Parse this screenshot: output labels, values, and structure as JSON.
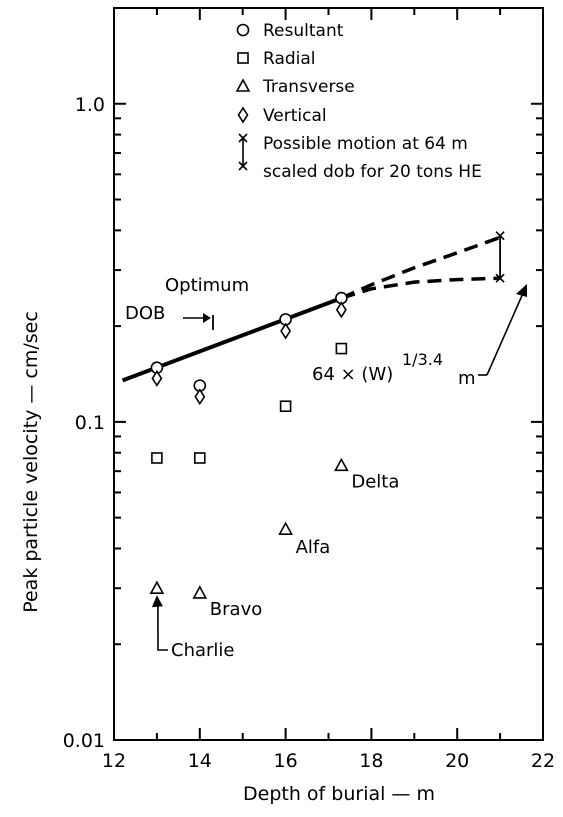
{
  "chart_data": {
    "type": "scatter",
    "title": "",
    "xlabel": "Depth of burial — m",
    "ylabel": "Peak particle velocity — cm/sec",
    "xlim": [
      12,
      22
    ],
    "ylim": [
      0.01,
      2.0
    ],
    "yscale": "log",
    "grid": false,
    "legend_position": "top-left",
    "x_ticks": [
      "12",
      "14",
      "16",
      "18",
      "20",
      "22"
    ],
    "y_ticks": [
      {
        "value": 1.0,
        "label": "1.0"
      },
      {
        "value": 0.1,
        "label": "0.1"
      },
      {
        "value": 0.01,
        "label": "0.01"
      }
    ],
    "series": [
      {
        "name": "Resultant",
        "marker": "circle",
        "x": [
          13,
          14,
          16,
          17.3
        ],
        "y": [
          0.148,
          0.13,
          0.21,
          0.245
        ]
      },
      {
        "name": "Radial",
        "marker": "square",
        "x": [
          13,
          14,
          16,
          17.3
        ],
        "y": [
          0.077,
          0.077,
          0.112,
          0.17
        ]
      },
      {
        "name": "Transverse",
        "marker": "triangle",
        "x": [
          13,
          14,
          16,
          17.3
        ],
        "y": [
          0.03,
          0.029,
          0.046,
          0.073
        ]
      },
      {
        "name": "Vertical",
        "marker": "diamond",
        "x": [
          13,
          14,
          16,
          17.3
        ],
        "y": [
          0.137,
          0.12,
          0.193,
          0.225
        ]
      }
    ],
    "legend_extra": {
      "label_line1": "Possible motion at 64 m",
      "label_line2": "scaled dob for 20 tons HE"
    },
    "fit_line": {
      "x": [
        12.2,
        17.3
      ],
      "y": [
        0.135,
        0.245
      ]
    },
    "dashed_upper": {
      "x": [
        17.3,
        18,
        19,
        20,
        21
      ],
      "y": [
        0.245,
        0.27,
        0.305,
        0.34,
        0.38
      ]
    },
    "dashed_lower": {
      "x": [
        17.3,
        18,
        19,
        20,
        21
      ],
      "y": [
        0.245,
        0.262,
        0.275,
        0.28,
        0.283
      ]
    },
    "possible_motion": {
      "x": 21,
      "y_high": 0.385,
      "y_low": 0.283
    },
    "annotations": {
      "optimum_line1": "Optimum",
      "optimum_line2": "DOB",
      "scaled_formula_main": "64 × (W)",
      "scaled_formula_exp": "1/3.4",
      "scaled_formula_unit": "m",
      "shot_labels": [
        {
          "text": "Delta",
          "x": 17.3,
          "y": 0.073
        },
        {
          "text": "Alfa",
          "x": 16,
          "y": 0.046
        },
        {
          "text": "Bravo",
          "x": 14,
          "y": 0.029
        },
        {
          "text": "Charlie",
          "x": 13,
          "y": 0.03
        }
      ]
    }
  }
}
